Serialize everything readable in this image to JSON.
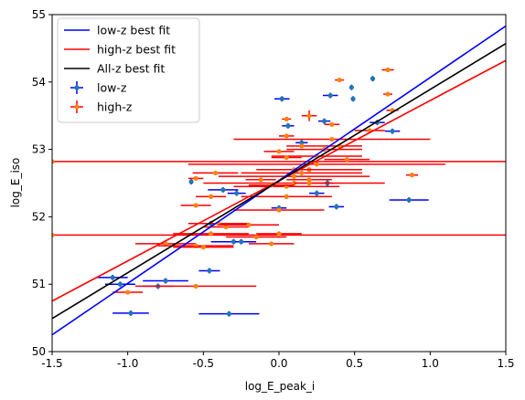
{
  "chart_data": {
    "type": "scatter",
    "xlabel": "log_E_peak_i",
    "ylabel": "log_E_iso",
    "xlim": [
      -1.5,
      1.5
    ],
    "ylim": [
      50,
      55
    ],
    "xticks": [
      "-1.5",
      "-1.0",
      "-0.5",
      "0.0",
      "0.5",
      "1.0",
      "1.5"
    ],
    "yticks": [
      "50",
      "51",
      "52",
      "53",
      "54",
      "55"
    ],
    "grid": false,
    "legend": {
      "placement": "top-left",
      "entries": [
        "low-z best fit",
        "high-z best fit",
        "All-z best fit",
        "low-z",
        "high-z"
      ]
    },
    "colors": {
      "low_fit": "#0000ff",
      "high_fit": "#ff0000",
      "all_fit": "#000000",
      "low_pts": "#1f77b4",
      "high_pts": "#ff7f0e"
    },
    "lines": [
      {
        "name": "low-z best fit",
        "x": [
          -1.5,
          1.5
        ],
        "y": [
          50.25,
          54.83
        ]
      },
      {
        "name": "high-z best fit",
        "x": [
          -1.5,
          1.5
        ],
        "y": [
          50.75,
          54.32
        ]
      },
      {
        "name": "All-z best fit",
        "x": [
          -1.5,
          1.5
        ],
        "y": [
          50.49,
          54.57
        ]
      }
    ],
    "series": [
      {
        "name": "low-z",
        "points": [
          {
            "x": -1.1,
            "y": 51.1,
            "xerr": 0.1,
            "yerr": 0.04
          },
          {
            "x": -1.05,
            "y": 51.0,
            "xerr": 0.1,
            "yerr": 0.04
          },
          {
            "x": -0.98,
            "y": 50.57,
            "xerr": 0.12,
            "yerr": 0.04
          },
          {
            "x": -0.75,
            "y": 51.05,
            "xerr": 0.15,
            "yerr": 0.04
          },
          {
            "x": -0.8,
            "y": 50.97,
            "xerr": 0.1,
            "yerr": 0.04
          },
          {
            "x": -0.46,
            "y": 51.2,
            "xerr": 0.07,
            "yerr": 0.04
          },
          {
            "x": -0.33,
            "y": 50.56,
            "xerr": 0.2,
            "yerr": 0.04
          },
          {
            "x": -0.58,
            "y": 52.52,
            "xerr": 0.0,
            "yerr": 0.04
          },
          {
            "x": -0.45,
            "y": 51.9,
            "xerr": 0.1,
            "yerr": 0.04
          },
          {
            "x": -0.37,
            "y": 52.4,
            "xerr": 0.1,
            "yerr": 0.04
          },
          {
            "x": -0.28,
            "y": 52.35,
            "xerr": 0.06,
            "yerr": 0.04
          },
          {
            "x": -0.3,
            "y": 51.63,
            "xerr": 0.15,
            "yerr": 0.04
          },
          {
            "x": -0.25,
            "y": 51.63,
            "xerr": 0.04,
            "yerr": 0.04
          },
          {
            "x": 0.0,
            "y": 52.13,
            "xerr": 0.05,
            "yerr": 0.04
          },
          {
            "x": 0.02,
            "y": 53.75,
            "xerr": 0.05,
            "yerr": 0.04
          },
          {
            "x": 0.06,
            "y": 53.35,
            "xerr": 0.04,
            "yerr": 0.04
          },
          {
            "x": 0.15,
            "y": 53.1,
            "xerr": 0.04,
            "yerr": 0.04
          },
          {
            "x": 0.25,
            "y": 52.35,
            "xerr": 0.05,
            "yerr": 0.04
          },
          {
            "x": 0.3,
            "y": 53.42,
            "xerr": 0.04,
            "yerr": 0.04
          },
          {
            "x": 0.32,
            "y": 52.5,
            "xerr": 0.04,
            "yerr": 0.04
          },
          {
            "x": 0.34,
            "y": 53.8,
            "xerr": 0.05,
            "yerr": 0.04
          },
          {
            "x": 0.38,
            "y": 52.15,
            "xerr": 0.05,
            "yerr": 0.04
          },
          {
            "x": 0.48,
            "y": 53.92,
            "xerr": 0.0,
            "yerr": 0.04
          },
          {
            "x": 0.49,
            "y": 53.75,
            "xerr": 0.0,
            "yerr": 0.04
          },
          {
            "x": 0.62,
            "y": 54.05,
            "xerr": 0.0,
            "yerr": 0.04
          },
          {
            "x": 0.65,
            "y": 53.4,
            "xerr": 0.05,
            "yerr": 0.04
          },
          {
            "x": 0.75,
            "y": 53.27,
            "xerr": 0.05,
            "yerr": 0.04
          },
          {
            "x": 0.86,
            "y": 52.25,
            "xerr": 0.13,
            "yerr": 0.04
          }
        ]
      },
      {
        "name": "high-z",
        "points": [
          {
            "x": -1.5,
            "y": 51.73,
            "xerr": 3.0,
            "yerr": 0.03
          },
          {
            "x": -1.5,
            "y": 52.82,
            "xerr": 3.0,
            "yerr": 0.03
          },
          {
            "x": -1.0,
            "y": 50.88,
            "xerr": 0.1,
            "yerr": 0.03
          },
          {
            "x": -0.75,
            "y": 51.6,
            "xerr": 0.2,
            "yerr": 0.03
          },
          {
            "x": -0.55,
            "y": 50.97,
            "xerr": 0.4,
            "yerr": 0.03
          },
          {
            "x": -0.55,
            "y": 51.57,
            "xerr": 0.25,
            "yerr": 0.03
          },
          {
            "x": -0.5,
            "y": 51.55,
            "xerr": 0.2,
            "yerr": 0.03
          },
          {
            "x": -0.45,
            "y": 51.75,
            "xerr": 0.25,
            "yerr": 0.03
          },
          {
            "x": -0.4,
            "y": 51.9,
            "xerr": 0.2,
            "yerr": 0.03
          },
          {
            "x": -0.35,
            "y": 51.85,
            "xerr": 0.15,
            "yerr": 0.03
          },
          {
            "x": -0.2,
            "y": 51.88,
            "xerr": 0.2,
            "yerr": 0.03
          },
          {
            "x": -0.55,
            "y": 52.17,
            "xerr": 0.1,
            "yerr": 0.03
          },
          {
            "x": -0.45,
            "y": 52.3,
            "xerr": 0.1,
            "yerr": 0.03
          },
          {
            "x": -0.55,
            "y": 52.57,
            "xerr": 0.05,
            "yerr": 0.03
          },
          {
            "x": -0.42,
            "y": 52.65,
            "xerr": 0.15,
            "yerr": 0.03
          },
          {
            "x": 0.0,
            "y": 51.75,
            "xerr": 0.15,
            "yerr": 0.03
          },
          {
            "x": -0.05,
            "y": 51.6,
            "xerr": 0.15,
            "yerr": 0.03
          },
          {
            "x": -0.15,
            "y": 51.7,
            "xerr": 0.2,
            "yerr": 0.03
          },
          {
            "x": 0.0,
            "y": 52.1,
            "xerr": 0.3,
            "yerr": 0.03
          },
          {
            "x": 0.05,
            "y": 52.3,
            "xerr": 0.3,
            "yerr": 0.03
          },
          {
            "x": 0.05,
            "y": 52.45,
            "xerr": 0.35,
            "yerr": 0.03
          },
          {
            "x": 0.1,
            "y": 52.5,
            "xerr": 0.6,
            "yerr": 0.03
          },
          {
            "x": 0.1,
            "y": 52.6,
            "xerr": 0.5,
            "yerr": 0.03
          },
          {
            "x": 0.15,
            "y": 52.65,
            "xerr": 0.4,
            "yerr": 0.03
          },
          {
            "x": 0.2,
            "y": 52.7,
            "xerr": 0.35,
            "yerr": 0.03
          },
          {
            "x": 0.25,
            "y": 52.78,
            "xerr": 0.85,
            "yerr": 0.03
          },
          {
            "x": 0.25,
            "y": 52.9,
            "xerr": 0.3,
            "yerr": 0.03
          },
          {
            "x": 0.3,
            "y": 53.0,
            "xerr": 0.25,
            "yerr": 0.03
          },
          {
            "x": 0.35,
            "y": 53.15,
            "xerr": 0.65,
            "yerr": 0.03
          },
          {
            "x": 0.4,
            "y": 53.05,
            "xerr": 0.15,
            "yerr": 0.03
          },
          {
            "x": 0.45,
            "y": 52.85,
            "xerr": 0.15,
            "yerr": 0.03
          },
          {
            "x": 0.2,
            "y": 52.55,
            "xerr": 0.15,
            "yerr": 0.03
          },
          {
            "x": 0.1,
            "y": 52.7,
            "xerr": 0.15,
            "yerr": 0.03
          },
          {
            "x": 0.05,
            "y": 52.88,
            "xerr": 0.1,
            "yerr": 0.03
          },
          {
            "x": 0.0,
            "y": 52.97,
            "xerr": 0.1,
            "yerr": 0.03
          },
          {
            "x": 0.15,
            "y": 53.05,
            "xerr": 0.1,
            "yerr": 0.03
          },
          {
            "x": 0.2,
            "y": 52.5,
            "xerr": 0.1,
            "yerr": 0.03
          },
          {
            "x": -0.05,
            "y": 52.47,
            "xerr": 0.15,
            "yerr": 0.03
          },
          {
            "x": -0.12,
            "y": 52.55,
            "xerr": 0.1,
            "yerr": 0.03
          },
          {
            "x": 0.05,
            "y": 53.2,
            "xerr": 0.05,
            "yerr": 0.03
          },
          {
            "x": 0.05,
            "y": 53.45,
            "xerr": 0.03,
            "yerr": 0.03
          },
          {
            "x": 0.2,
            "y": 53.5,
            "xerr": 0.05,
            "yerr": 0.08
          },
          {
            "x": 0.35,
            "y": 53.37,
            "xerr": 0.05,
            "yerr": 0.03
          },
          {
            "x": 0.4,
            "y": 54.03,
            "xerr": 0.03,
            "yerr": 0.03
          },
          {
            "x": 0.6,
            "y": 53.28,
            "xerr": 0.1,
            "yerr": 0.03
          },
          {
            "x": 0.72,
            "y": 53.82,
            "xerr": 0.03,
            "yerr": 0.03
          },
          {
            "x": 0.72,
            "y": 54.18,
            "xerr": 0.04,
            "yerr": 0.03
          },
          {
            "x": 0.75,
            "y": 53.58,
            "xerr": 0.04,
            "yerr": 0.03
          },
          {
            "x": 0.88,
            "y": 52.62,
            "xerr": 0.04,
            "yerr": 0.03
          }
        ]
      }
    ]
  }
}
